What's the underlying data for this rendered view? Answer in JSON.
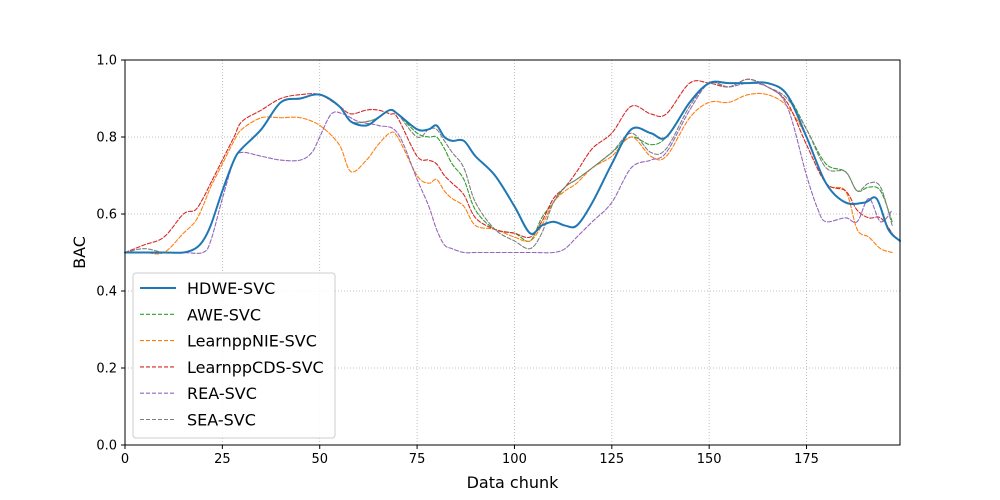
{
  "chart_data": {
    "type": "line",
    "title": "",
    "xlabel": "Data chunk",
    "ylabel": "BAC",
    "xlim": [
      0,
      199
    ],
    "ylim": [
      0.0,
      1.0
    ],
    "xticks": [
      0,
      25,
      50,
      75,
      100,
      125,
      150,
      175
    ],
    "yticks": [
      0.0,
      0.2,
      0.4,
      0.6,
      0.8,
      1.0
    ],
    "grid": true,
    "legend_position": "lower-left",
    "series": [
      {
        "name": "HDWE-SVC",
        "color": "#1f77b4",
        "style": "solid",
        "x": [
          0,
          5,
          10,
          15,
          18,
          20,
          22,
          25,
          28,
          30,
          35,
          40,
          45,
          50,
          55,
          58,
          62,
          65,
          68,
          70,
          75,
          78,
          80,
          82,
          84,
          87,
          90,
          95,
          100,
          104,
          107,
          110,
          113,
          116,
          120,
          125,
          130,
          135,
          139,
          145,
          150,
          155,
          160,
          165,
          170,
          175,
          180,
          185,
          190,
          193,
          196,
          199
        ],
        "y": [
          0.5,
          0.5,
          0.5,
          0.5,
          0.51,
          0.53,
          0.57,
          0.66,
          0.74,
          0.77,
          0.82,
          0.89,
          0.9,
          0.91,
          0.88,
          0.84,
          0.83,
          0.85,
          0.87,
          0.86,
          0.82,
          0.82,
          0.83,
          0.8,
          0.79,
          0.79,
          0.75,
          0.7,
          0.62,
          0.55,
          0.57,
          0.58,
          0.57,
          0.57,
          0.63,
          0.73,
          0.82,
          0.81,
          0.8,
          0.89,
          0.94,
          0.94,
          0.94,
          0.94,
          0.91,
          0.8,
          0.68,
          0.63,
          0.63,
          0.64,
          0.56,
          0.53
        ]
      },
      {
        "name": "AWE-SVC",
        "color": "#2ca02c",
        "style": "dashed",
        "x": [
          0,
          5,
          10,
          15,
          18,
          20,
          22,
          25,
          28,
          30,
          35,
          40,
          45,
          50,
          55,
          58,
          62,
          65,
          68,
          70,
          75,
          78,
          80,
          82,
          84,
          87,
          90,
          95,
          100,
          104,
          107,
          110,
          113,
          116,
          120,
          125,
          130,
          135,
          139,
          145,
          150,
          155,
          160,
          165,
          170,
          175,
          180,
          185,
          188,
          191,
          194,
          197
        ],
        "y": [
          0.5,
          0.5,
          0.5,
          0.5,
          0.51,
          0.53,
          0.57,
          0.66,
          0.74,
          0.77,
          0.82,
          0.89,
          0.9,
          0.91,
          0.88,
          0.84,
          0.84,
          0.85,
          0.87,
          0.86,
          0.81,
          0.8,
          0.8,
          0.77,
          0.73,
          0.69,
          0.61,
          0.56,
          0.55,
          0.53,
          0.59,
          0.63,
          0.67,
          0.69,
          0.72,
          0.76,
          0.8,
          0.78,
          0.8,
          0.89,
          0.94,
          0.94,
          0.94,
          0.94,
          0.91,
          0.82,
          0.73,
          0.71,
          0.66,
          0.67,
          0.66,
          0.58
        ]
      },
      {
        "name": "LearnppNIE-SVC",
        "color": "#ff7f0e",
        "style": "dashed",
        "x": [
          0,
          5,
          10,
          15,
          18,
          20,
          22,
          25,
          28,
          30,
          35,
          40,
          45,
          50,
          55,
          58,
          62,
          65,
          68,
          70,
          75,
          78,
          80,
          82,
          84,
          87,
          90,
          95,
          100,
          104,
          107,
          110,
          113,
          116,
          120,
          125,
          130,
          135,
          139,
          145,
          150,
          155,
          160,
          165,
          170,
          175,
          180,
          185,
          188,
          191,
          194,
          197
        ],
        "y": [
          0.5,
          0.5,
          0.5,
          0.55,
          0.58,
          0.62,
          0.67,
          0.73,
          0.79,
          0.82,
          0.85,
          0.85,
          0.85,
          0.83,
          0.78,
          0.71,
          0.74,
          0.78,
          0.81,
          0.8,
          0.7,
          0.68,
          0.69,
          0.66,
          0.64,
          0.62,
          0.57,
          0.56,
          0.54,
          0.53,
          0.57,
          0.63,
          0.66,
          0.68,
          0.72,
          0.75,
          0.8,
          0.75,
          0.75,
          0.85,
          0.89,
          0.89,
          0.91,
          0.91,
          0.88,
          0.8,
          0.68,
          0.66,
          0.56,
          0.54,
          0.51,
          0.5
        ]
      },
      {
        "name": "LearnppCDS-SVC",
        "color": "#d62728",
        "style": "dashed",
        "x": [
          0,
          5,
          10,
          15,
          18,
          20,
          22,
          25,
          28,
          30,
          35,
          40,
          45,
          50,
          55,
          58,
          62,
          65,
          68,
          70,
          75,
          78,
          80,
          82,
          84,
          87,
          90,
          95,
          100,
          104,
          107,
          110,
          113,
          116,
          120,
          125,
          130,
          135,
          139,
          145,
          150,
          155,
          160,
          165,
          170,
          175,
          180,
          185,
          188,
          191,
          194,
          197
        ],
        "y": [
          0.5,
          0.52,
          0.54,
          0.6,
          0.61,
          0.64,
          0.68,
          0.74,
          0.8,
          0.84,
          0.87,
          0.9,
          0.91,
          0.91,
          0.88,
          0.86,
          0.87,
          0.87,
          0.86,
          0.85,
          0.75,
          0.74,
          0.73,
          0.7,
          0.68,
          0.65,
          0.59,
          0.56,
          0.55,
          0.54,
          0.58,
          0.64,
          0.67,
          0.71,
          0.77,
          0.81,
          0.88,
          0.86,
          0.86,
          0.94,
          0.94,
          0.93,
          0.95,
          0.93,
          0.89,
          0.78,
          0.68,
          0.66,
          0.61,
          0.59,
          0.59,
          0.55
        ]
      },
      {
        "name": "REA-SVC",
        "color": "#9467bd",
        "style": "dashed",
        "x": [
          0,
          5,
          10,
          15,
          20,
          22,
          25,
          28,
          30,
          35,
          40,
          45,
          48,
          50,
          53,
          56,
          60,
          65,
          70,
          75,
          78,
          80,
          82,
          84,
          87,
          90,
          95,
          100,
          105,
          110,
          113,
          116,
          120,
          125,
          130,
          135,
          139,
          145,
          150,
          155,
          160,
          165,
          170,
          175,
          178,
          180,
          185,
          188,
          191,
          194,
          197
        ],
        "y": [
          0.5,
          0.5,
          0.5,
          0.5,
          0.5,
          0.53,
          0.64,
          0.74,
          0.76,
          0.75,
          0.74,
          0.74,
          0.76,
          0.8,
          0.86,
          0.86,
          0.84,
          0.83,
          0.81,
          0.69,
          0.62,
          0.56,
          0.52,
          0.51,
          0.5,
          0.5,
          0.5,
          0.5,
          0.5,
          0.5,
          0.51,
          0.54,
          0.58,
          0.63,
          0.72,
          0.74,
          0.76,
          0.87,
          0.94,
          0.93,
          0.94,
          0.93,
          0.88,
          0.7,
          0.61,
          0.58,
          0.59,
          0.58,
          0.64,
          0.58,
          0.61
        ]
      },
      {
        "name": "SEA-SVC",
        "color": "#7f7f7f",
        "style": "dashed",
        "x": [
          0,
          5,
          10,
          15,
          18,
          20,
          22,
          25,
          28,
          30,
          35,
          40,
          45,
          50,
          55,
          58,
          62,
          65,
          68,
          70,
          75,
          78,
          80,
          82,
          84,
          87,
          90,
          95,
          100,
          104,
          107,
          110,
          113,
          116,
          120,
          125,
          130,
          135,
          139,
          145,
          150,
          155,
          160,
          165,
          170,
          175,
          180,
          185,
          188,
          191,
          194,
          197
        ],
        "y": [
          0.5,
          0.51,
          0.5,
          0.5,
          0.51,
          0.53,
          0.57,
          0.66,
          0.74,
          0.77,
          0.82,
          0.89,
          0.9,
          0.91,
          0.88,
          0.84,
          0.84,
          0.85,
          0.87,
          0.86,
          0.8,
          0.82,
          0.82,
          0.79,
          0.76,
          0.72,
          0.63,
          0.56,
          0.53,
          0.51,
          0.55,
          0.63,
          0.67,
          0.69,
          0.72,
          0.76,
          0.81,
          0.76,
          0.77,
          0.88,
          0.94,
          0.93,
          0.95,
          0.93,
          0.9,
          0.82,
          0.72,
          0.71,
          0.66,
          0.68,
          0.67,
          0.57
        ]
      }
    ]
  }
}
